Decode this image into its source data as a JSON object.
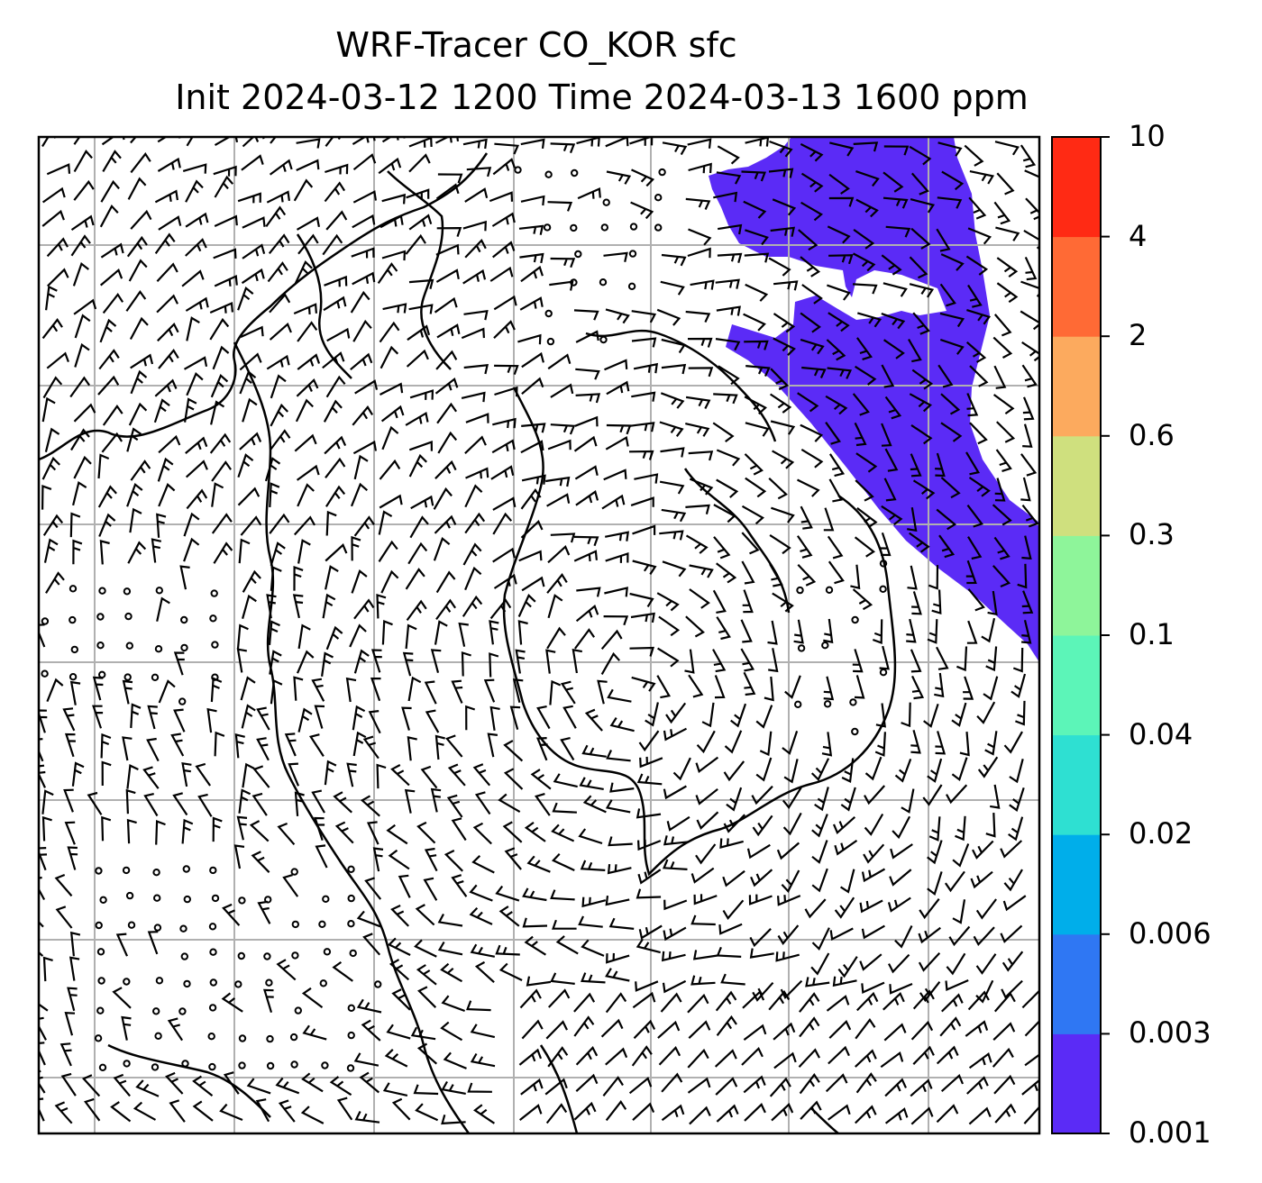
{
  "title": {
    "line1": "WRF-Tracer CO_KOR sfc",
    "line2": "Init 2024-03-12 1200 Time 2024-03-13 1600 ppm"
  },
  "colorbar": {
    "levels": [
      "0.001",
      "0.003",
      "0.006",
      "0.02",
      "0.04",
      "0.1",
      "0.3",
      "0.6",
      "2",
      "4",
      "10"
    ],
    "colors": [
      "#5b2bf6",
      "#2f77f3",
      "#00aeea",
      "#2ee0d2",
      "#5cf5b8",
      "#8ef59a",
      "#cfe07e",
      "#fcaa5e",
      "#ff6a35",
      "#ff2a14"
    ]
  },
  "map": {
    "plume_color": "#5b2bf6",
    "gridline_color": "#b0b0b0",
    "wind_barb_color": "#000000"
  }
}
